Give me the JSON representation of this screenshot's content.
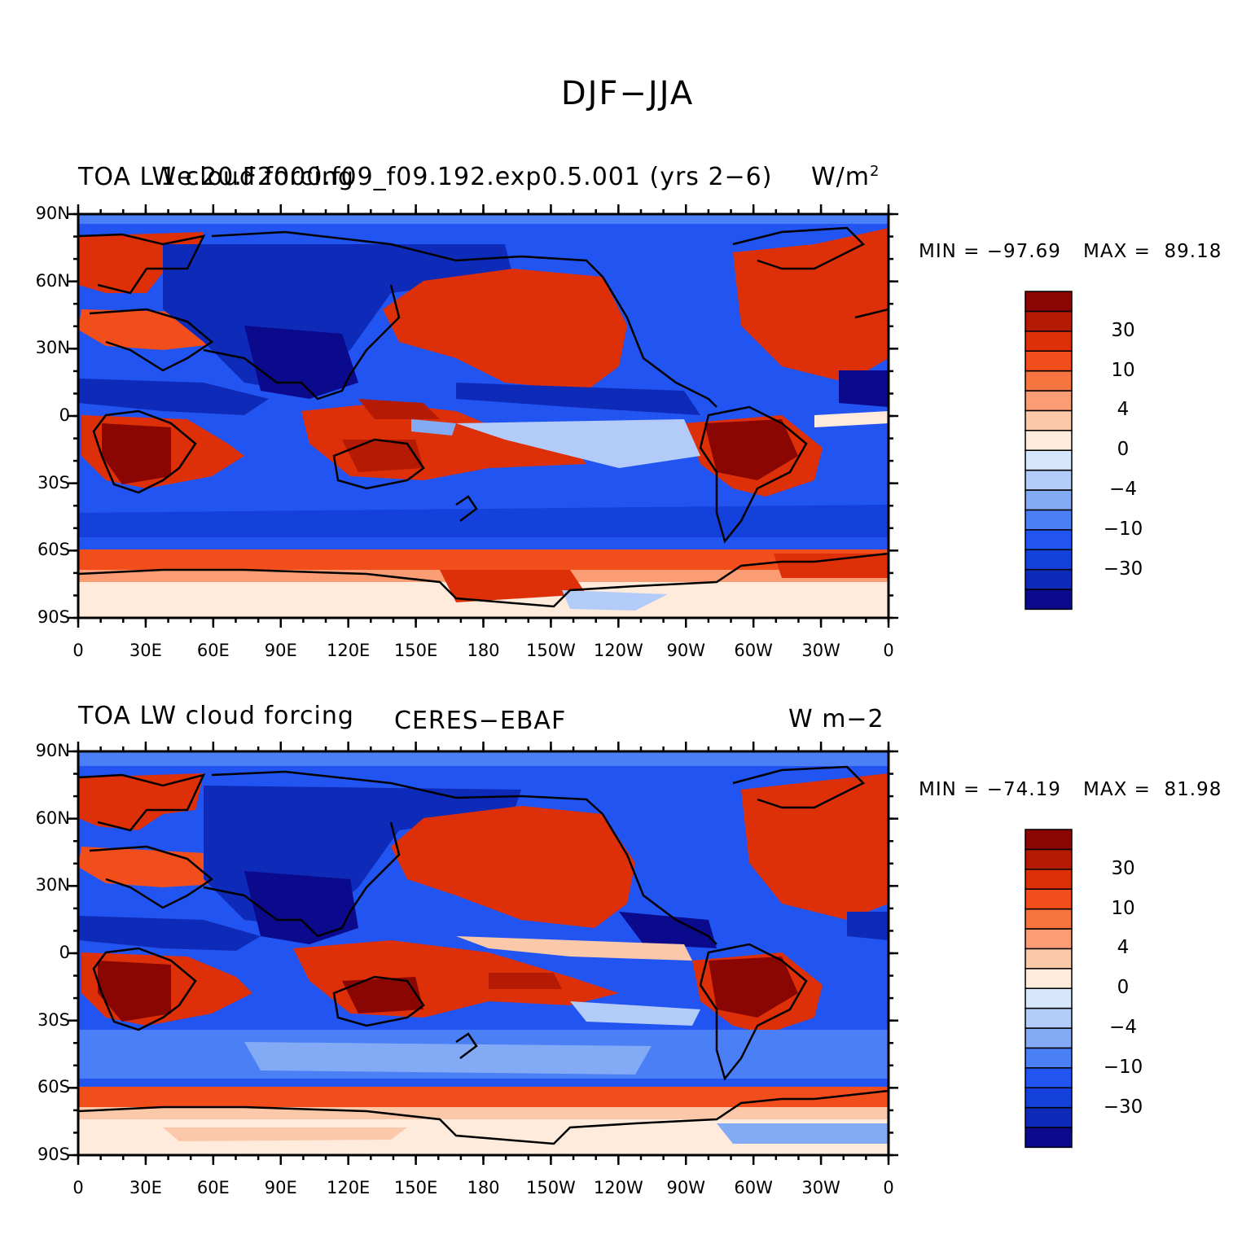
{
  "figure": {
    "title": "DJF−JJA"
  },
  "panels": [
    {
      "left_title": "TOA LW cloud forcing",
      "center_title": "1e.20.F2000.f09_f09.192.exp0.5.001 (yrs 2−6)",
      "right_title": "W/m",
      "right_title_sup": "2",
      "min_label": "MIN = −97.69",
      "max_label": "MAX =  89.18"
    },
    {
      "left_title": "TOA LW cloud forcing",
      "center_title": "CERES−EBAF",
      "right_title": "W m−2",
      "right_title_sup": "",
      "min_label": "MIN = −74.19",
      "max_label": "MAX =  81.98"
    }
  ],
  "axes": {
    "lat_labels": [
      "90N",
      "60N",
      "30N",
      "0",
      "30S",
      "60S",
      "90S"
    ],
    "lon_labels": [
      "0",
      "30E",
      "60E",
      "90E",
      "120E",
      "150E",
      "180",
      "150W",
      "120W",
      "90W",
      "60W",
      "30W",
      "0"
    ]
  },
  "colorbar": {
    "colors": [
      "#0b0a8c",
      "#0e2ab8",
      "#1441dc",
      "#2154f0",
      "#4a7ff5",
      "#83aaf5",
      "#b2cbf9",
      "#d6e7fd",
      "#ffebdc",
      "#fcc8aa",
      "#fa9c74",
      "#f6743f",
      "#f24e1c",
      "#de3008",
      "#b41a04",
      "#8a0603"
    ],
    "tick_labels": [
      "30",
      "10",
      "4",
      "0",
      "−4",
      "−10",
      "−30"
    ]
  }
}
